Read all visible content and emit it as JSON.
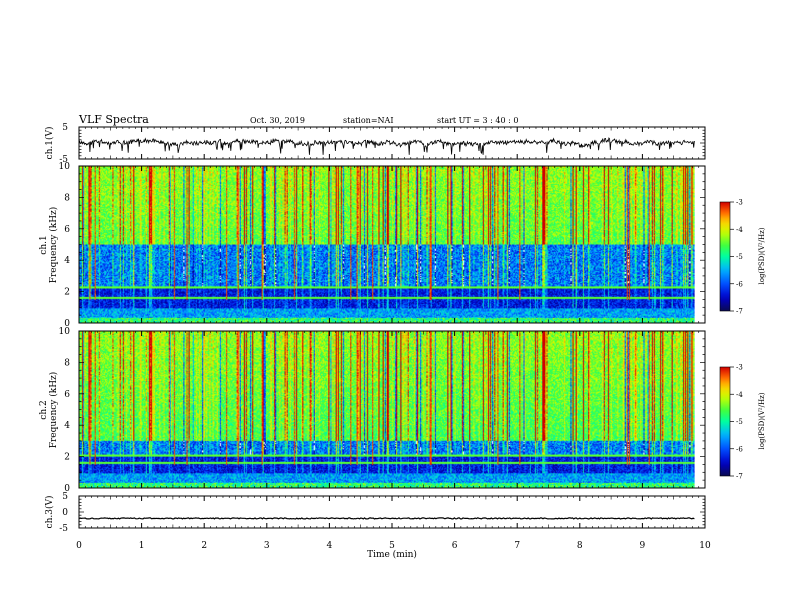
{
  "header": {
    "title": "VLF Spectra",
    "date": "Oct. 30, 2019",
    "station": "station=NAI",
    "start": "start  UT =  3 : 40 : 0"
  },
  "colors": {
    "accent": "#000000",
    "colormap": [
      "#0a0a50",
      "#0000c8",
      "#0050ff",
      "#00b4ff",
      "#00ffa0",
      "#40ff40",
      "#c8ff00",
      "#ffd000",
      "#ff6000",
      "#d00000",
      "#ffffff"
    ]
  },
  "chart_data": [
    {
      "type": "line",
      "panel": "ch1-waveform",
      "ylabel": "ch.1(V)",
      "ylim": [
        -5,
        5
      ],
      "yticks": [
        "5",
        "-5"
      ],
      "xlim": [
        0,
        10
      ],
      "x_end": 9.83,
      "level_mean": 0.2,
      "description_values": {
        "typical_range": [
          -2.0,
          2.5
        ]
      }
    },
    {
      "type": "heatmap",
      "panel": "ch1-spectrogram",
      "ylabel": "ch.1\nFrequency (kHz)",
      "ylabel_top": "ch.1",
      "ylabel_bottom": "Frequency (kHz)",
      "ylim": [
        0,
        10
      ],
      "yticks": [
        "0",
        "2",
        "4",
        "6",
        "8",
        "10"
      ],
      "xlim": [
        0,
        10
      ],
      "x_end": 9.83,
      "colorbar": {
        "label": "log(PSD)(V²/Hz)",
        "range": [
          -7,
          -3
        ],
        "ticks": [
          "-3",
          "-4",
          "-5",
          "-6",
          "-7"
        ]
      },
      "bands_khz": {
        "low_noise_top": 2.3,
        "mid_noise_top": 5.0
      }
    },
    {
      "type": "heatmap",
      "panel": "ch2-spectrogram",
      "ylabel_top": "ch.2",
      "ylabel_bottom": "Frequency (kHz)",
      "ylim": [
        0,
        10
      ],
      "yticks": [
        "0",
        "2",
        "4",
        "6",
        "8",
        "10"
      ],
      "xlim": [
        0,
        10
      ],
      "x_end": 9.83,
      "colorbar": {
        "label": "log(PSD)(V²/Hz)",
        "range": [
          -7,
          -3
        ],
        "ticks": [
          "-3",
          "-4",
          "-5",
          "-6",
          "-7"
        ]
      },
      "bands_khz": {
        "low_noise_top": 2.1,
        "mid_noise_top": 3.0
      }
    },
    {
      "type": "line",
      "panel": "ch3-waveform",
      "ylabel": "ch.3(V)",
      "ylim": [
        -5,
        5
      ],
      "yticks": [
        "5",
        "0",
        "-5"
      ],
      "xlim": [
        0,
        10
      ],
      "x_end": 9.83,
      "level_mean": -2.0,
      "xlabel": "Time  (min)",
      "xticks": [
        "0",
        "1",
        "2",
        "3",
        "4",
        "5",
        "6",
        "7",
        "8",
        "9",
        "10"
      ]
    }
  ]
}
